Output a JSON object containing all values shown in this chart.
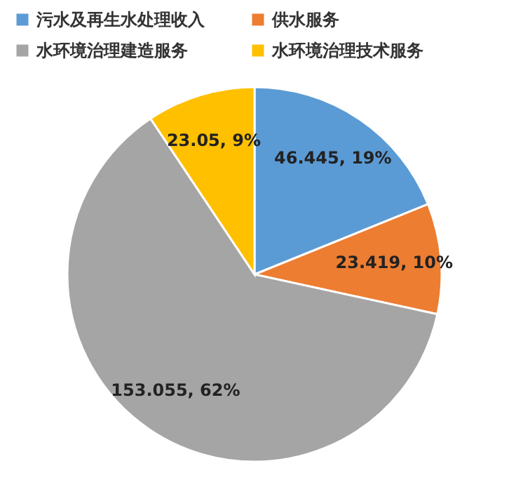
{
  "chart_data": {
    "type": "pie",
    "categories": [
      "污水及再生水处理收入",
      "供水服务",
      "水环境治理建造服务",
      "水环境治理技术服务"
    ],
    "values": [
      46.445,
      23.419,
      153.055,
      23.05
    ],
    "colors": [
      "#5b9bd5",
      "#ed7d31",
      "#a5a5a5",
      "#ffc000"
    ],
    "value_labels": [
      "46.445, 19%",
      "23.419, 10%",
      "153.055, 62%",
      "23.05, 9%"
    ],
    "legend": "top"
  }
}
